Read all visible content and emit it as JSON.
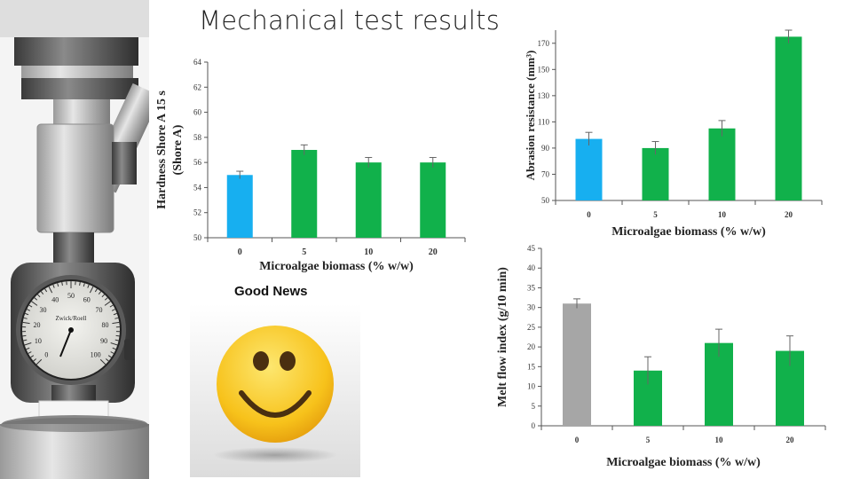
{
  "slide": {
    "title": "Mechanical test results",
    "good_news": "Good News"
  },
  "photo": {
    "gauge_brand": "Zwick/Roell",
    "gauge_scale": [
      "0",
      "10",
      "20",
      "30",
      "40",
      "50",
      "60",
      "70",
      "80",
      "90",
      "100"
    ]
  },
  "colors": {
    "reference_blue": "#17aff0",
    "sample_green": "#11b14b",
    "reference_gray": "#a6a6a6",
    "smiley_yellow": "#f7c21b"
  },
  "chart_data": [
    {
      "type": "bar",
      "categories": [
        "0",
        "5",
        "10",
        "20"
      ],
      "values": [
        55,
        57,
        56,
        56
      ],
      "errors": [
        0.3,
        0.4,
        0.4,
        0.4
      ],
      "bar_colors": [
        "#17aff0",
        "#11b14b",
        "#11b14b",
        "#11b14b"
      ],
      "title": "",
      "xlabel": "Microalgae biomass (% w/w)",
      "ylabel": "Hardness Shore A 15 s",
      "ylabel2": "(Shore A)",
      "ylim": [
        50,
        64
      ],
      "yticks": [
        50,
        52,
        54,
        56,
        58,
        60,
        62,
        64
      ],
      "grid": false
    },
    {
      "type": "bar",
      "categories": [
        "0",
        "5",
        "10",
        "20"
      ],
      "values": [
        97,
        90,
        105,
        175
      ],
      "errors": [
        5,
        5,
        6,
        5
      ],
      "bar_colors": [
        "#17aff0",
        "#11b14b",
        "#11b14b",
        "#11b14b"
      ],
      "title": "",
      "xlabel": "Microalgae biomass (% w/w)",
      "ylabel": "Abrasion resistance (mm³)",
      "ylim": [
        50,
        180
      ],
      "yticks": [
        50,
        70,
        90,
        110,
        130,
        150,
        170
      ],
      "grid": false
    },
    {
      "type": "bar",
      "categories": [
        "0",
        "5",
        "10",
        "20"
      ],
      "values": [
        31,
        14,
        21,
        19
      ],
      "errors": [
        1.2,
        3.5,
        3.5,
        3.8
      ],
      "bar_colors": [
        "#a6a6a6",
        "#11b14b",
        "#11b14b",
        "#11b14b"
      ],
      "title": "",
      "xlabel": "Microalgae biomass (% w/w)",
      "ylabel": "Melt flow index (g/10 min)",
      "ylim": [
        0,
        45
      ],
      "yticks": [
        0,
        5,
        10,
        15,
        20,
        25,
        30,
        35,
        40,
        45
      ],
      "grid": false
    }
  ]
}
